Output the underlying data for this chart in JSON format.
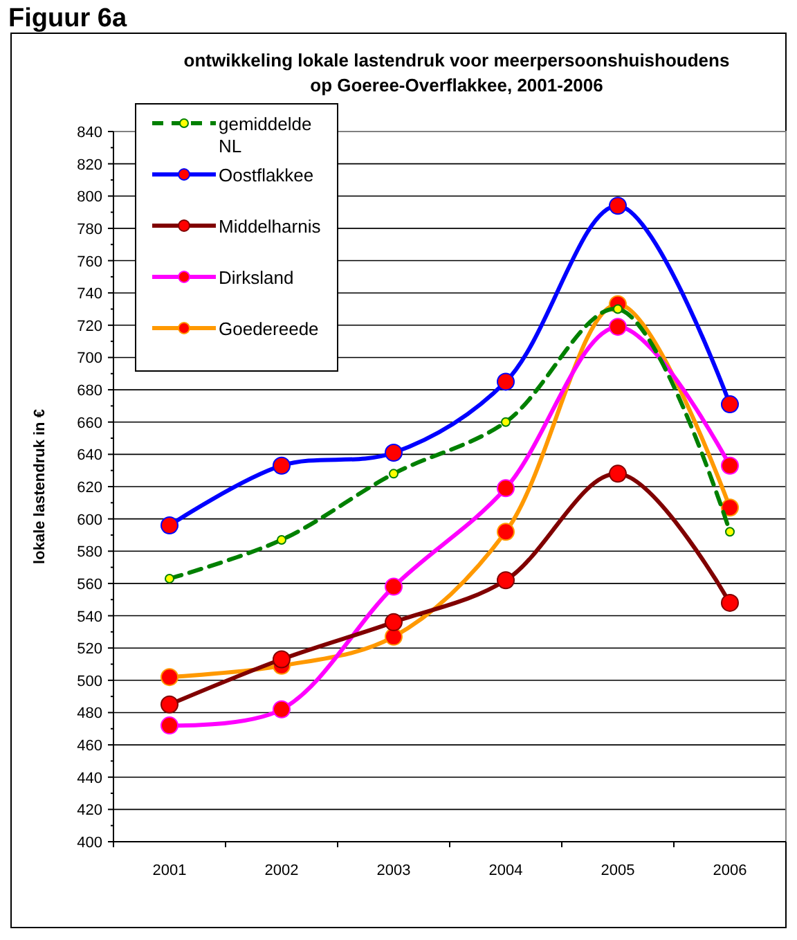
{
  "chart_data": {
    "type": "line",
    "title": "ontwikkeling lokale lastendruk voor meerpersoonshuishoudens\nop Goeree-Overflakkee, 2001-2006",
    "annotations": [
      "Figuur 6a"
    ],
    "ylabel": "lokale lastendruk in €",
    "categories": [
      "2001",
      "2002",
      "2003",
      "2004",
      "2005",
      "2006"
    ],
    "series": [
      {
        "name": "gemiddelde NL",
        "color": "#008000",
        "line_style": "dashed",
        "values": [
          563,
          587,
          628,
          660,
          730,
          592
        ]
      },
      {
        "name": "Oostflakkee",
        "color": "#0000ff",
        "values": [
          596,
          633,
          641,
          685,
          794,
          671
        ]
      },
      {
        "name": "Middelharnis",
        "color": "#800000",
        "values": [
          485,
          513,
          536,
          562,
          628,
          548
        ]
      },
      {
        "name": "Dirksland",
        "color": "#ff00ff",
        "values": [
          472,
          482,
          558,
          619,
          719,
          633
        ]
      },
      {
        "name": "Goedereede",
        "color": "#ff9900",
        "values": [
          502,
          509,
          527,
          592,
          733,
          607
        ]
      }
    ],
    "ylim": [
      400,
      840
    ],
    "yticks": [
      400,
      420,
      440,
      460,
      480,
      500,
      520,
      540,
      560,
      580,
      600,
      620,
      640,
      660,
      680,
      700,
      720,
      740,
      760,
      780,
      800,
      820,
      840
    ],
    "grid": "y",
    "legend": "top left",
    "marker": "circle",
    "line_style": "solid"
  }
}
